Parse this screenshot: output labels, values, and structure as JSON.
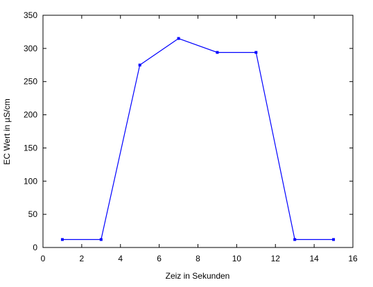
{
  "chart_data": {
    "type": "line",
    "title": "",
    "xlabel": "Zeiz in Sekunden",
    "ylabel": "EC Wert in µS/cm",
    "xlim": [
      0,
      16
    ],
    "ylim": [
      0,
      350
    ],
    "xticks": [
      0,
      2,
      4,
      6,
      8,
      10,
      12,
      14,
      16
    ],
    "yticks": [
      0,
      50,
      100,
      150,
      200,
      250,
      300,
      350
    ],
    "grid": false,
    "legend": "none",
    "series": [
      {
        "color": "#0000ff",
        "marker": "square",
        "points": [
          {
            "x": 1,
            "y": 12
          },
          {
            "x": 3,
            "y": 12
          },
          {
            "x": 5,
            "y": 275
          },
          {
            "x": 7,
            "y": 315
          },
          {
            "x": 9,
            "y": 294
          },
          {
            "x": 11,
            "y": 294
          },
          {
            "x": 13,
            "y": 12
          },
          {
            "x": 15,
            "y": 12
          }
        ]
      }
    ]
  }
}
